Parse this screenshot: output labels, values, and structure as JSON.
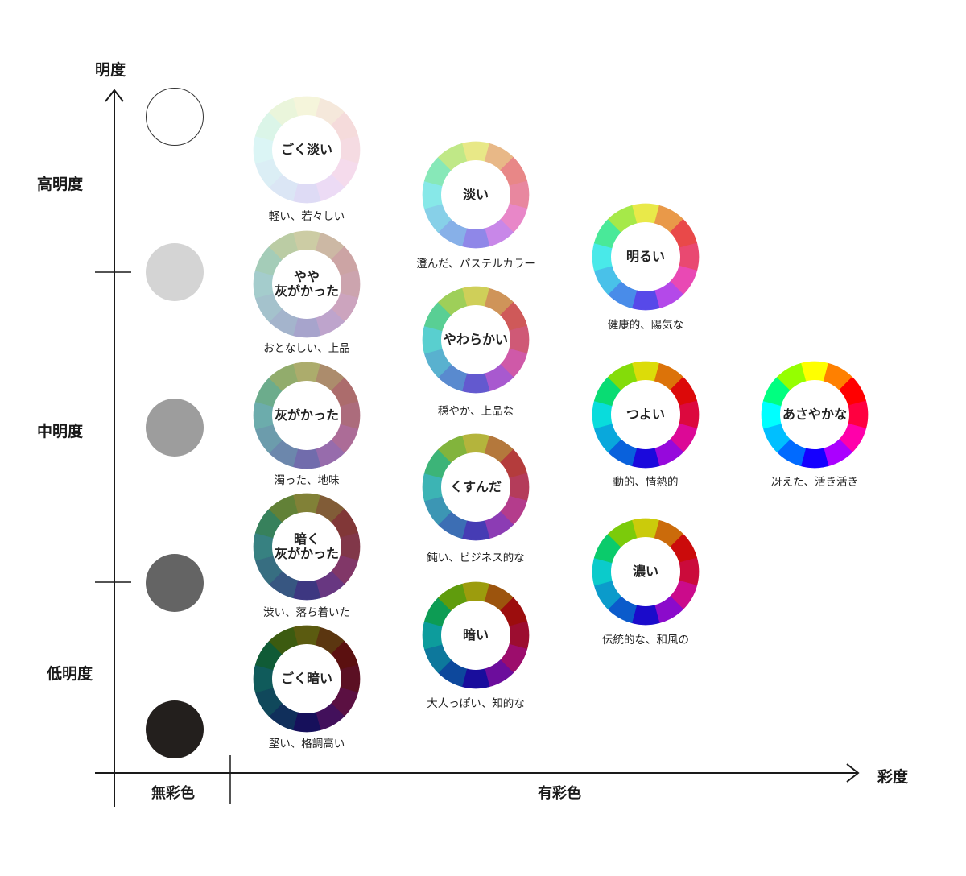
{
  "axes": {
    "y_title": "明度",
    "x_title": "彩度",
    "y_levels": [
      "高明度",
      "中明度",
      "低明度"
    ],
    "x_groups": [
      "無彩色",
      "有彩色"
    ]
  },
  "achromatic": [
    {
      "color": "#ffffff",
      "border": "#333333"
    },
    {
      "color": "#d4d4d4"
    },
    {
      "color": "#9d9d9d"
    },
    {
      "color": "#646464"
    },
    {
      "color": "#231f1d"
    }
  ],
  "tones": [
    {
      "name": "ごく淡い",
      "desc": "軽い、若々しい",
      "sat": 0.55,
      "light": 0.91
    },
    {
      "name": "やや\n灰がかった",
      "desc": "おとなしい、上品",
      "sat": 0.28,
      "light": 0.72
    },
    {
      "name": "灰がかった",
      "desc": "濁った、地味",
      "sat": 0.28,
      "light": 0.55
    },
    {
      "name": "暗く\n灰がかった",
      "desc": "渋い、落ち着いた",
      "sat": 0.4,
      "light": 0.36
    },
    {
      "name": "ごく暗い",
      "desc": "堅い、格調高い",
      "sat": 0.7,
      "light": 0.21
    },
    {
      "name": "淡い",
      "desc": "澄んだ、パステルカラー",
      "sat": 0.68,
      "light": 0.72
    },
    {
      "name": "やわらかい",
      "desc": "穏やか、上品な",
      "sat": 0.55,
      "light": 0.58
    },
    {
      "name": "くすんだ",
      "desc": "鈍い、ビジネス的な",
      "sat": 0.5,
      "light": 0.47
    },
    {
      "name": "暗い",
      "desc": "大人っぽい、知的な",
      "sat": 0.85,
      "light": 0.33
    },
    {
      "name": "明るい",
      "desc": "健康的、陽気な",
      "sat": 0.78,
      "light": 0.6
    },
    {
      "name": "つよい",
      "desc": "動的、情熱的",
      "sat": 0.92,
      "light": 0.45
    },
    {
      "name": "濃い",
      "desc": "伝統的な、和風の",
      "sat": 0.9,
      "light": 0.42
    },
    {
      "name": "あさやかな",
      "desc": "冴えた、活き活き",
      "sat": 1.0,
      "light": 0.5
    }
  ],
  "hue_order": [
    60,
    30,
    0,
    345,
    320,
    280,
    245,
    215,
    195,
    180,
    150,
    85
  ]
}
